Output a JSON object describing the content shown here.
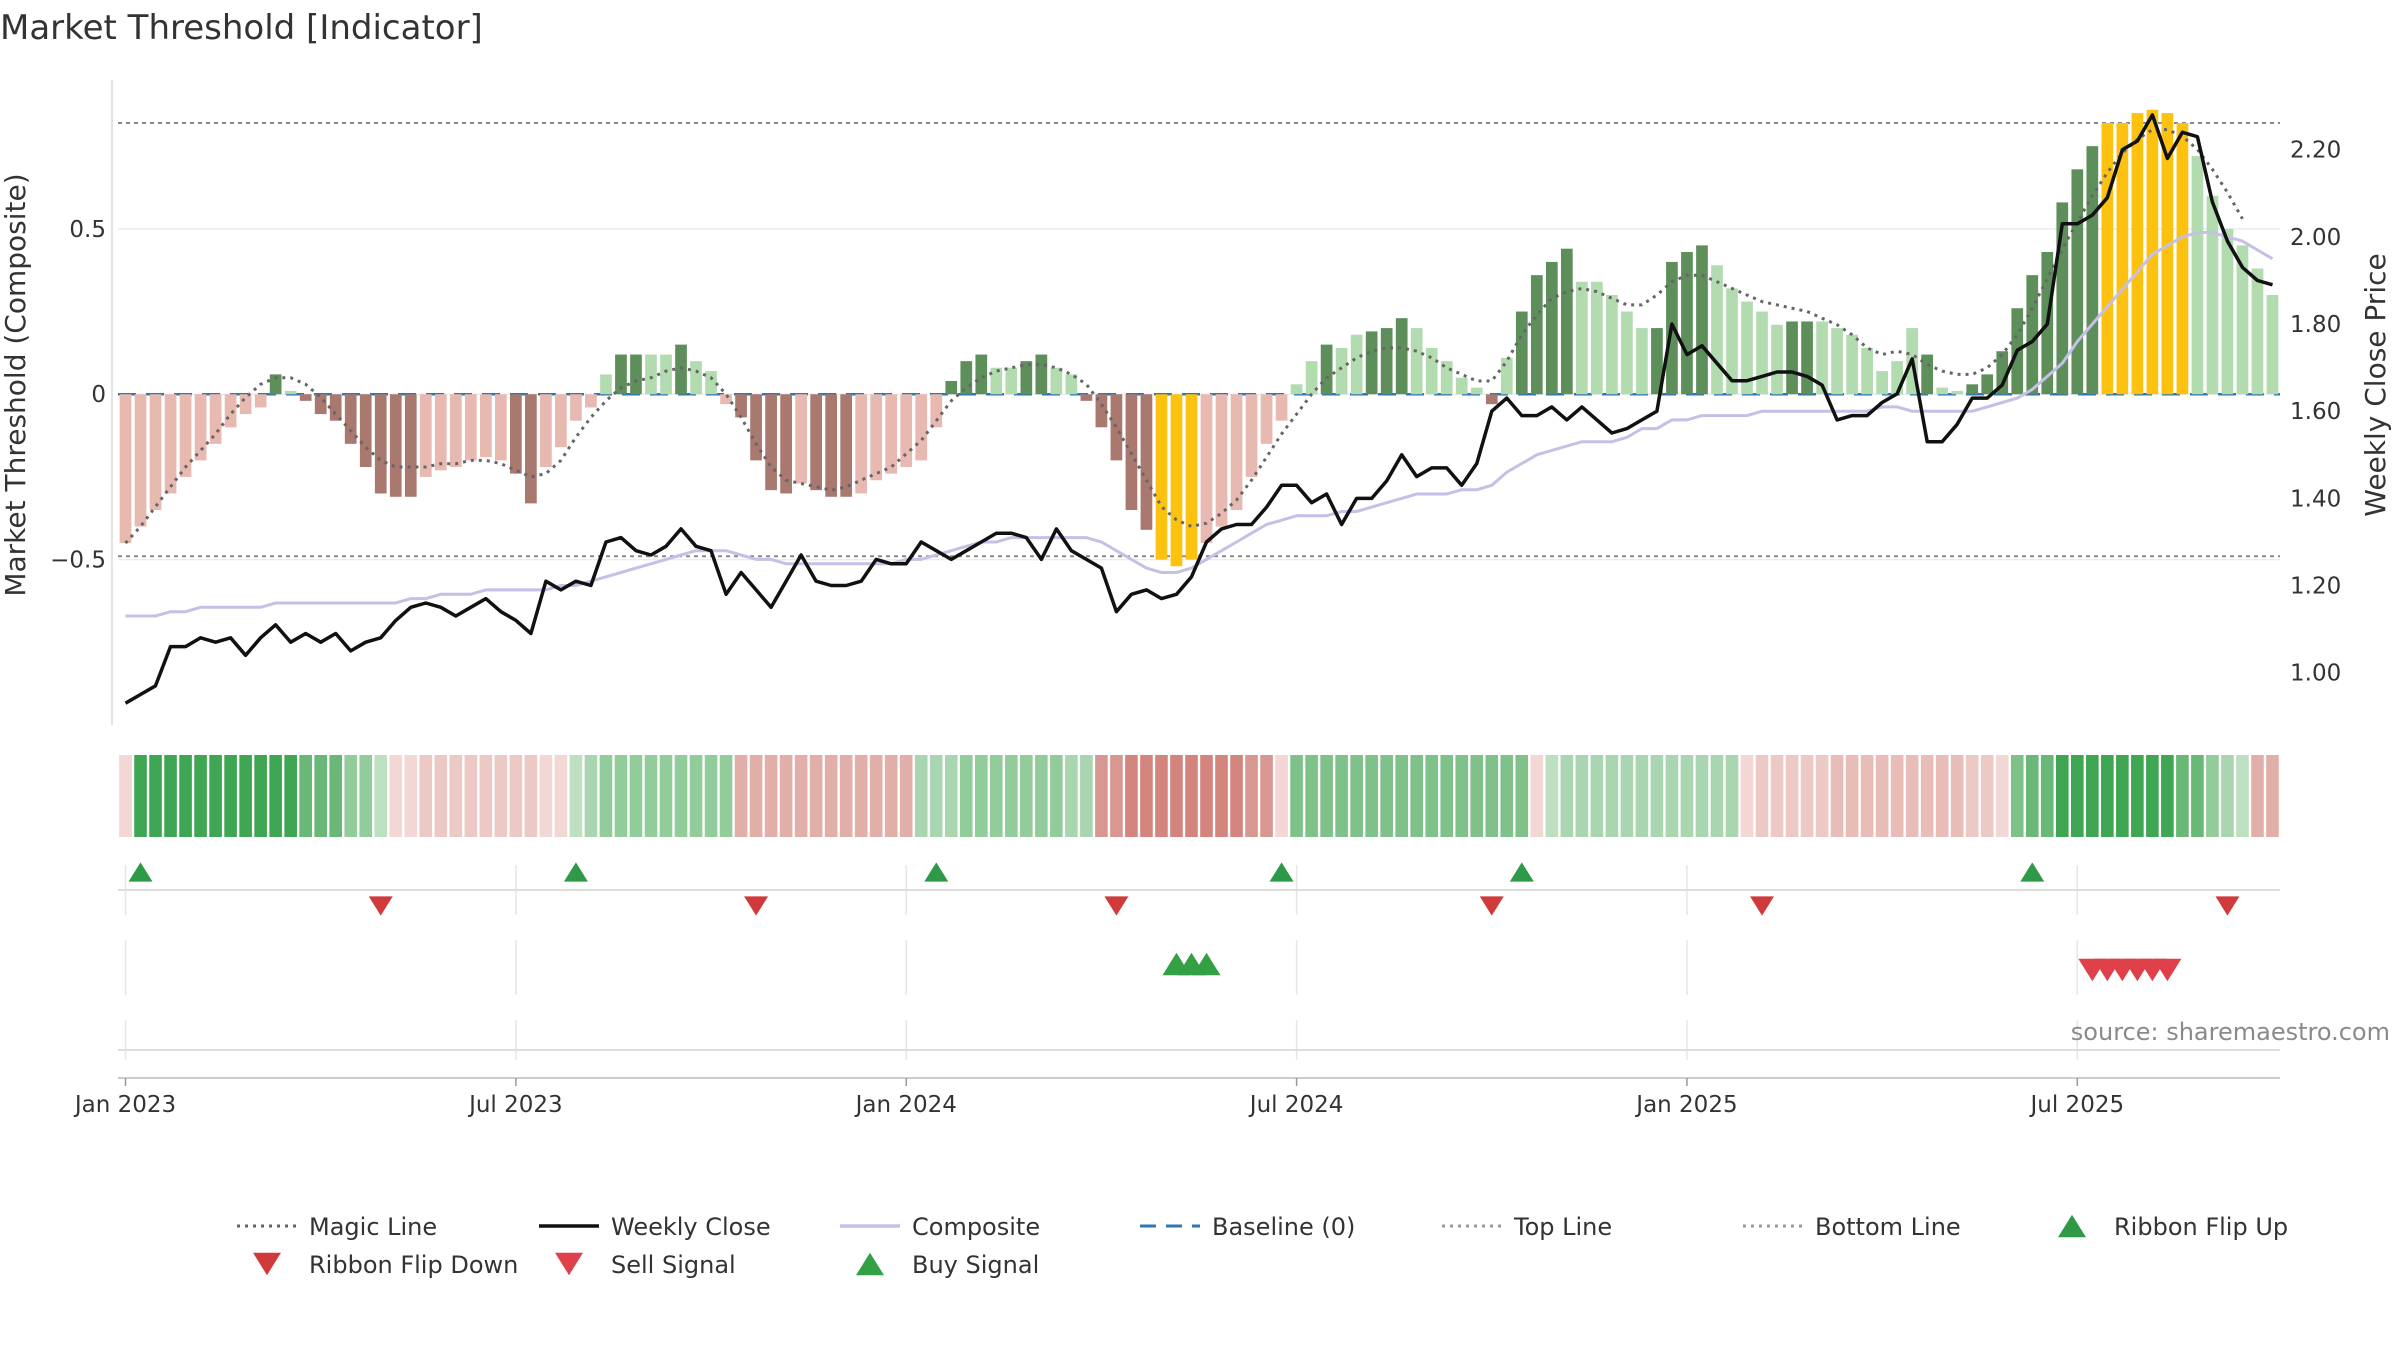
{
  "chart_data": {
    "type": "bar",
    "title": "Market Threshold [Indicator]",
    "ylabel": "Market Threshold (Composite)",
    "y2label": "Weekly Close Price",
    "source": "source: sharemaestro.com",
    "ylim": [
      -1.0,
      0.95
    ],
    "y2lim": [
      0.88,
      2.36
    ],
    "yticks": [
      0.5,
      0,
      -0.5
    ],
    "ytick_labels": [
      "0.5",
      "0",
      "−0.5"
    ],
    "y2ticks": [
      2.2,
      2.0,
      1.8,
      1.6,
      1.4,
      1.2,
      1.0
    ],
    "y2tick_labels": [
      "2.20",
      "2.00",
      "1.80",
      "1.60",
      "1.40",
      "1.20",
      "1.00"
    ],
    "xticks": [
      {
        "week": 1,
        "label": "Jan 2023"
      },
      {
        "week": 27,
        "label": "Jul 2023"
      },
      {
        "week": 53,
        "label": "Jan 2024"
      },
      {
        "week": 79,
        "label": "Jul 2024"
      },
      {
        "week": 105,
        "label": "Jan 2025"
      },
      {
        "week": 131,
        "label": "Jul 2025"
      }
    ],
    "top_line": 0.82,
    "bottom_line": -0.49,
    "baseline": 0,
    "composite_bars": [
      -0.45,
      -0.4,
      -0.35,
      -0.3,
      -0.25,
      -0.2,
      -0.15,
      -0.1,
      -0.06,
      -0.04,
      0.06,
      0.01,
      -0.02,
      -0.06,
      -0.08,
      -0.15,
      -0.22,
      -0.3,
      -0.31,
      -0.31,
      -0.25,
      -0.23,
      -0.22,
      -0.2,
      -0.19,
      -0.2,
      -0.24,
      -0.33,
      -0.22,
      -0.16,
      -0.08,
      -0.04,
      0.06,
      0.12,
      0.12,
      0.12,
      0.12,
      0.15,
      0.1,
      0.07,
      -0.03,
      -0.07,
      -0.2,
      -0.29,
      -0.3,
      -0.27,
      -0.29,
      -0.31,
      -0.31,
      -0.3,
      -0.26,
      -0.24,
      -0.22,
      -0.2,
      -0.1,
      0.04,
      0.1,
      0.12,
      0.08,
      0.08,
      0.1,
      0.12,
      0.08,
      0.06,
      -0.02,
      -0.1,
      -0.2,
      -0.35,
      -0.41,
      -0.5,
      -0.52,
      -0.5,
      -0.45,
      -0.4,
      -0.35,
      -0.25,
      -0.15,
      -0.08,
      0.03,
      0.1,
      0.15,
      0.14,
      0.18,
      0.19,
      0.2,
      0.23,
      0.2,
      0.14,
      0.1,
      0.05,
      0.02,
      -0.03,
      0.11,
      0.25,
      0.36,
      0.4,
      0.44,
      0.34,
      0.34,
      0.3,
      0.25,
      0.2,
      0.2,
      0.4,
      0.43,
      0.45,
      0.39,
      0.32,
      0.28,
      0.25,
      0.21,
      0.22,
      0.22,
      0.22,
      0.2,
      0.18,
      0.14,
      0.07,
      0.1,
      0.2,
      0.12,
      0.02,
      0.01,
      0.03,
      0.06,
      0.13,
      0.26,
      0.36,
      0.43,
      0.58,
      0.68,
      0.75,
      0.82,
      0.82,
      0.85,
      0.86,
      0.85,
      0.82,
      0.72,
      0.6,
      0.5,
      0.45,
      0.38,
      0.3
    ],
    "bar_colors": [
      "#e8b9b0",
      "#e8b9b0",
      "#e8b9b0",
      "#e8b9b0",
      "#e8b9b0",
      "#e8b9b0",
      "#e8b9b0",
      "#e8b9b0",
      "#e8b9b0",
      "#e8b9b0",
      "#5e8f5b",
      "#b3dbb0",
      "#a9786f",
      "#a9786f",
      "#a9786f",
      "#a9786f",
      "#a9786f",
      "#a9786f",
      "#a9786f",
      "#a9786f",
      "#e8b9b0",
      "#e8b9b0",
      "#e8b9b0",
      "#e8b9b0",
      "#e8b9b0",
      "#e8b9b0",
      "#a9786f",
      "#a9786f",
      "#e8b9b0",
      "#e8b9b0",
      "#e8b9b0",
      "#e8b9b0",
      "#b3dbb0",
      "#5e8f5b",
      "#5e8f5b",
      "#b3dbb0",
      "#b3dbb0",
      "#5e8f5b",
      "#b3dbb0",
      "#b3dbb0",
      "#e8b9b0",
      "#a9786f",
      "#a9786f",
      "#a9786f",
      "#a9786f",
      "#e8b9b0",
      "#a9786f",
      "#a9786f",
      "#a9786f",
      "#e8b9b0",
      "#e8b9b0",
      "#e8b9b0",
      "#e8b9b0",
      "#e8b9b0",
      "#e8b9b0",
      "#5e8f5b",
      "#5e8f5b",
      "#5e8f5b",
      "#b3dbb0",
      "#b3dbb0",
      "#5e8f5b",
      "#5e8f5b",
      "#b3dbb0",
      "#b3dbb0",
      "#a9786f",
      "#a9786f",
      "#a9786f",
      "#a9786f",
      "#a9786f",
      "#fcc20f",
      "#fcc20f",
      "#fcc20f",
      "#e8b9b0",
      "#e8b9b0",
      "#e8b9b0",
      "#e8b9b0",
      "#e8b9b0",
      "#e8b9b0",
      "#b3dbb0",
      "#b3dbb0",
      "#5e8f5b",
      "#b3dbb0",
      "#b3dbb0",
      "#5e8f5b",
      "#5e8f5b",
      "#5e8f5b",
      "#b3dbb0",
      "#b3dbb0",
      "#b3dbb0",
      "#b3dbb0",
      "#b3dbb0",
      "#a9786f",
      "#b3dbb0",
      "#5e8f5b",
      "#5e8f5b",
      "#5e8f5b",
      "#5e8f5b",
      "#b3dbb0",
      "#b3dbb0",
      "#b3dbb0",
      "#b3dbb0",
      "#b3dbb0",
      "#5e8f5b",
      "#5e8f5b",
      "#5e8f5b",
      "#5e8f5b",
      "#b3dbb0",
      "#b3dbb0",
      "#b3dbb0",
      "#b3dbb0",
      "#b3dbb0",
      "#5e8f5b",
      "#5e8f5b",
      "#b3dbb0",
      "#b3dbb0",
      "#b3dbb0",
      "#b3dbb0",
      "#b3dbb0",
      "#b3dbb0",
      "#b3dbb0",
      "#5e8f5b",
      "#b3dbb0",
      "#b3dbb0",
      "#5e8f5b",
      "#5e8f5b",
      "#5e8f5b",
      "#5e8f5b",
      "#5e8f5b",
      "#5e8f5b",
      "#5e8f5b",
      "#5e8f5b",
      "#5e8f5b",
      "#fcc20f",
      "#fcc20f",
      "#fcc20f",
      "#fcc20f",
      "#fcc20f",
      "#fcc20f",
      "#b3dbb0",
      "#b3dbb0",
      "#b3dbb0",
      "#b3dbb0",
      "#b3dbb0",
      "#b3dbb0"
    ],
    "magic_line": [
      -0.45,
      -0.4,
      -0.34,
      -0.28,
      -0.22,
      -0.17,
      -0.12,
      -0.06,
      -0.01,
      0.03,
      0.05,
      0.05,
      0.03,
      -0.01,
      -0.06,
      -0.11,
      -0.16,
      -0.2,
      -0.22,
      -0.22,
      -0.22,
      -0.21,
      -0.21,
      -0.2,
      -0.2,
      -0.21,
      -0.23,
      -0.25,
      -0.24,
      -0.2,
      -0.13,
      -0.07,
      -0.02,
      0.02,
      0.04,
      0.05,
      0.07,
      0.08,
      0.07,
      0.05,
      0.0,
      -0.07,
      -0.15,
      -0.22,
      -0.26,
      -0.27,
      -0.28,
      -0.29,
      -0.28,
      -0.26,
      -0.24,
      -0.22,
      -0.18,
      -0.14,
      -0.08,
      -0.02,
      0.02,
      0.05,
      0.07,
      0.08,
      0.09,
      0.09,
      0.08,
      0.06,
      0.03,
      -0.03,
      -0.1,
      -0.18,
      -0.26,
      -0.34,
      -0.38,
      -0.4,
      -0.39,
      -0.36,
      -0.32,
      -0.26,
      -0.19,
      -0.12,
      -0.06,
      0.0,
      0.05,
      0.08,
      0.11,
      0.13,
      0.14,
      0.14,
      0.13,
      0.11,
      0.08,
      0.06,
      0.04,
      0.04,
      0.1,
      0.18,
      0.24,
      0.29,
      0.31,
      0.32,
      0.31,
      0.29,
      0.27,
      0.27,
      0.3,
      0.34,
      0.36,
      0.36,
      0.34,
      0.32,
      0.3,
      0.28,
      0.27,
      0.26,
      0.25,
      0.23,
      0.21,
      0.18,
      0.14,
      0.12,
      0.13,
      0.12,
      0.09,
      0.07,
      0.06,
      0.06,
      0.08,
      0.12,
      0.18,
      0.26,
      0.35,
      0.44,
      0.52,
      0.6,
      0.67,
      0.73,
      0.77,
      0.8,
      0.8,
      0.78,
      0.74,
      0.68,
      0.61,
      0.53
    ],
    "weekly_close": [
      0.93,
      0.95,
      0.97,
      1.06,
      1.06,
      1.08,
      1.07,
      1.08,
      1.04,
      1.08,
      1.11,
      1.07,
      1.09,
      1.07,
      1.09,
      1.05,
      1.07,
      1.08,
      1.12,
      1.15,
      1.16,
      1.15,
      1.13,
      1.15,
      1.17,
      1.14,
      1.12,
      1.09,
      1.21,
      1.19,
      1.21,
      1.2,
      1.3,
      1.31,
      1.28,
      1.27,
      1.29,
      1.33,
      1.29,
      1.28,
      1.18,
      1.23,
      1.19,
      1.15,
      1.21,
      1.27,
      1.21,
      1.2,
      1.2,
      1.21,
      1.26,
      1.25,
      1.25,
      1.3,
      1.28,
      1.26,
      1.28,
      1.3,
      1.32,
      1.32,
      1.31,
      1.26,
      1.33,
      1.28,
      1.26,
      1.24,
      1.14,
      1.18,
      1.19,
      1.17,
      1.18,
      1.22,
      1.3,
      1.33,
      1.34,
      1.34,
      1.38,
      1.43,
      1.43,
      1.39,
      1.41,
      1.34,
      1.4,
      1.4,
      1.44,
      1.5,
      1.45,
      1.47,
      1.47,
      1.43,
      1.48,
      1.6,
      1.63,
      1.59,
      1.59,
      1.61,
      1.58,
      1.61,
      1.58,
      1.55,
      1.56,
      1.58,
      1.6,
      1.8,
      1.73,
      1.75,
      1.71,
      1.67,
      1.67,
      1.68,
      1.69,
      1.69,
      1.68,
      1.66,
      1.58,
      1.59,
      1.59,
      1.62,
      1.64,
      1.72,
      1.53,
      1.53,
      1.57,
      1.63,
      1.63,
      1.66,
      1.74,
      1.76,
      1.8,
      2.03,
      2.03,
      2.05,
      2.09,
      2.2,
      2.22,
      2.28,
      2.18,
      2.24,
      2.23,
      2.08,
      1.99,
      1.93,
      1.9,
      1.89
    ],
    "composite_line": [
      1.13,
      1.13,
      1.13,
      1.14,
      1.14,
      1.15,
      1.15,
      1.15,
      1.15,
      1.15,
      1.16,
      1.16,
      1.16,
      1.16,
      1.16,
      1.16,
      1.16,
      1.16,
      1.16,
      1.17,
      1.17,
      1.18,
      1.18,
      1.18,
      1.19,
      1.19,
      1.19,
      1.19,
      1.19,
      1.2,
      1.2,
      1.21,
      1.22,
      1.23,
      1.24,
      1.25,
      1.26,
      1.27,
      1.28,
      1.28,
      1.28,
      1.27,
      1.26,
      1.26,
      1.25,
      1.25,
      1.25,
      1.25,
      1.25,
      1.25,
      1.25,
      1.25,
      1.26,
      1.26,
      1.27,
      1.28,
      1.29,
      1.3,
      1.3,
      1.31,
      1.31,
      1.31,
      1.31,
      1.31,
      1.31,
      1.3,
      1.28,
      1.26,
      1.24,
      1.23,
      1.23,
      1.24,
      1.26,
      1.28,
      1.3,
      1.32,
      1.34,
      1.35,
      1.36,
      1.36,
      1.36,
      1.37,
      1.37,
      1.38,
      1.39,
      1.4,
      1.41,
      1.41,
      1.41,
      1.42,
      1.42,
      1.43,
      1.46,
      1.48,
      1.5,
      1.51,
      1.52,
      1.53,
      1.53,
      1.53,
      1.54,
      1.56,
      1.56,
      1.58,
      1.58,
      1.59,
      1.59,
      1.59,
      1.59,
      1.6,
      1.6,
      1.6,
      1.6,
      1.6,
      1.6,
      1.6,
      1.6,
      1.61,
      1.61,
      1.6,
      1.6,
      1.6,
      1.6,
      1.6,
      1.61,
      1.62,
      1.63,
      1.65,
      1.68,
      1.71,
      1.76,
      1.8,
      1.84,
      1.88,
      1.92,
      1.96,
      1.98,
      2.0,
      2.01,
      2.01,
      2.0,
      1.99,
      1.97,
      1.95
    ],
    "ribbon_colors": [
      "#f2d7d5",
      "#3fa653",
      "#3fa653",
      "#3fa653",
      "#3fa653",
      "#3fa653",
      "#3fa653",
      "#3fa653",
      "#3fa653",
      "#3fa653",
      "#3fa653",
      "#3fa653",
      "#69b877",
      "#69b877",
      "#69b877",
      "#93cc9b",
      "#93cc9b",
      "#bde0c0",
      "#f2d7d5",
      "#f2d7d5",
      "#ecc9c5",
      "#ecc9c5",
      "#ecc9c5",
      "#ecc9c5",
      "#ecc9c5",
      "#ecc9c5",
      "#ecc9c5",
      "#ecc9c5",
      "#f2d7d5",
      "#f2d7d5",
      "#bde0c0",
      "#a9d6b0",
      "#93cc9b",
      "#93cc9b",
      "#93cc9b",
      "#93cc9b",
      "#93cc9b",
      "#93cc9b",
      "#93cc9b",
      "#93cc9b",
      "#93cc9b",
      "#e2aea8",
      "#e2aea8",
      "#e2aea8",
      "#e2aea8",
      "#e2aea8",
      "#e2aea8",
      "#e2aea8",
      "#e2aea8",
      "#e2aea8",
      "#e2aea8",
      "#e2aea8",
      "#e2aea8",
      "#a9d6b0",
      "#a9d6b0",
      "#a9d6b0",
      "#93cc9b",
      "#93cc9b",
      "#93cc9b",
      "#93cc9b",
      "#93cc9b",
      "#93cc9b",
      "#93cc9b",
      "#a9d6b0",
      "#a9d6b0",
      "#d99791",
      "#d99791",
      "#d3847c",
      "#d3847c",
      "#d3847c",
      "#d3847c",
      "#d3847c",
      "#d3847c",
      "#d3847c",
      "#d3847c",
      "#d99791",
      "#d99791",
      "#f2d7d5",
      "#7ec28a",
      "#7ec28a",
      "#7ec28a",
      "#7ec28a",
      "#7ec28a",
      "#7ec28a",
      "#7ec28a",
      "#7ec28a",
      "#7ec28a",
      "#7ec28a",
      "#7ec28a",
      "#7ec28a",
      "#7ec28a",
      "#7ec28a",
      "#7ec28a",
      "#7ec28a",
      "#f2d7d5",
      "#bde0c0",
      "#a9d6b0",
      "#a9d6b0",
      "#a9d6b0",
      "#a9d6b0",
      "#a9d6b0",
      "#a9d6b0",
      "#a9d6b0",
      "#a9d6b0",
      "#a9d6b0",
      "#a9d6b0",
      "#a9d6b0",
      "#a9d6b0",
      "#f2d7d5",
      "#ecc9c5",
      "#ecc9c5",
      "#ecc9c5",
      "#ecc9c5",
      "#ecc9c5",
      "#e8bdb8",
      "#e8bdb8",
      "#e8bdb8",
      "#e8bdb8",
      "#e8bdb8",
      "#e8bdb8",
      "#e8bdb8",
      "#e8bdb8",
      "#e8bdb8",
      "#ecc9c5",
      "#ecc9c5",
      "#f2d7d5",
      "#7ec28a",
      "#69b877",
      "#69b877",
      "#3fa653",
      "#3fa653",
      "#3fa653",
      "#3fa653",
      "#3fa653",
      "#3fa653",
      "#3fa653",
      "#3fa653",
      "#69b877",
      "#69b877",
      "#93cc9b",
      "#a9d6b0",
      "#bde0c0",
      "#e2aea8",
      "#e2aea8"
    ],
    "ribbon_flip_up": [
      1,
      30,
      54,
      77,
      93,
      127
    ],
    "ribbon_flip_down": [
      17,
      42,
      66,
      91,
      109,
      140
    ],
    "buy_signal": [
      70,
      71,
      72
    ],
    "sell_signal": [
      131,
      132,
      133,
      134,
      135,
      136
    ],
    "legend": [
      {
        "label": "Magic Line",
        "kind": "dotted",
        "color": "#666666"
      },
      {
        "label": "Weekly Close",
        "kind": "solid",
        "color": "#111111"
      },
      {
        "label": "Composite",
        "kind": "solid",
        "color": "#c6bfe6"
      },
      {
        "label": "Baseline (0)",
        "kind": "dashed",
        "color": "#2e77b0"
      },
      {
        "label": "Top Line",
        "kind": "dotted",
        "color": "#999999"
      },
      {
        "label": "Bottom Line",
        "kind": "dotted",
        "color": "#999999"
      },
      {
        "label": "Ribbon Flip Up",
        "kind": "tri-up",
        "color": "#2e9a47"
      },
      {
        "label": "Ribbon Flip Down",
        "kind": "tri-down",
        "color": "#d13a3a"
      },
      {
        "label": "Sell Signal",
        "kind": "tri-down",
        "color": "#e0404a"
      },
      {
        "label": "Buy Signal",
        "kind": "tri-up",
        "color": "#34a044"
      }
    ]
  }
}
